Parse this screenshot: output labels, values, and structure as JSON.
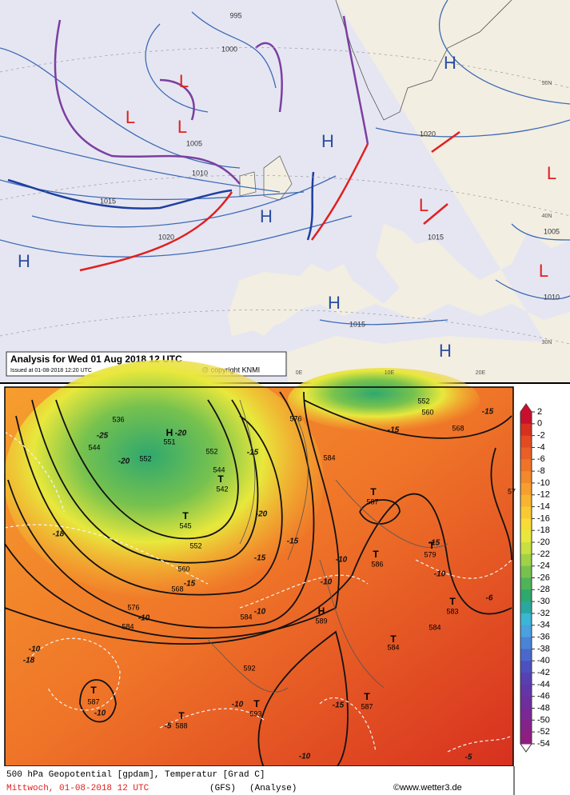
{
  "top_map": {
    "title": "Analysis for Wed 01 Aug 2018  12 UTC",
    "issued": "Issued at 01-08-2018  12:20 UTC",
    "copyright": "@ copyright KNMI",
    "isobar_labels": [
      "995",
      "1000",
      "1005",
      "1010",
      "1015",
      "1020",
      "1020",
      "1015",
      "1005",
      "1010",
      "1015"
    ],
    "centers": [
      "H",
      "L",
      "L",
      "L",
      "H",
      "H",
      "H",
      "H",
      "L",
      "L",
      "L",
      "H"
    ],
    "grid_labels": [
      "50N",
      "40N",
      "30N",
      "0E",
      "10E",
      "20E"
    ]
  },
  "bottom_map": {
    "caption": "500 hPa Geopotential [gpdam], Temperatur [Grad C]",
    "date": "Mittwoch, 01-08-2018  12 UTC",
    "model": "(GFS)",
    "run": "(Analyse)",
    "source": "©www.wetter3.de",
    "scale": [
      2,
      0,
      -2,
      -4,
      -6,
      -8,
      -10,
      -12,
      -14,
      -16,
      -18,
      -20,
      -22,
      -24,
      -26,
      -28,
      -30,
      -32,
      -34,
      -36,
      -38,
      -40,
      -42,
      -44,
      -46,
      -48,
      -50,
      -52,
      -54
    ],
    "colors": [
      "#c8102e",
      "#d7301f",
      "#e34a22",
      "#ea5f25",
      "#ef7428",
      "#f3892b",
      "#f69e2e",
      "#f8b431",
      "#f9c934",
      "#f6dc38",
      "#e8e83c",
      "#c8e040",
      "#9fd246",
      "#77c24e",
      "#4fb35a",
      "#2fa86e",
      "#2aa8a0",
      "#3bb6d4",
      "#4aa0e0",
      "#4a84d8",
      "#4a68cc",
      "#4c50c0",
      "#5640b4",
      "#6236a8",
      "#6e2e9e",
      "#7a2894",
      "#84228a",
      "#8e1e80"
    ],
    "geopotential_labels": [
      "536",
      "544",
      "551",
      "552",
      "552",
      "544",
      "542",
      "545",
      "552",
      "560",
      "568",
      "576",
      "584",
      "584",
      "576",
      "584",
      "587",
      "586",
      "579",
      "583",
      "584",
      "584",
      "589",
      "592",
      "593",
      "588",
      "587",
      "587",
      "560",
      "568",
      "552",
      "57"
    ],
    "temperature_labels": [
      "-25",
      "-20",
      "-20",
      "-15",
      "-20",
      "-15",
      "-15",
      "-15",
      "-10",
      "-10",
      "-10",
      "-10",
      "-10",
      "-6",
      "-10",
      "-10",
      "-18",
      "-10",
      "-5",
      "-15",
      "-10",
      "-5",
      "-18",
      "-15",
      "-15",
      "-15"
    ],
    "markers": [
      "T",
      "T",
      "T",
      "T",
      "T",
      "T",
      "T",
      "T",
      "T",
      "T",
      "T",
      "H",
      "H"
    ]
  }
}
